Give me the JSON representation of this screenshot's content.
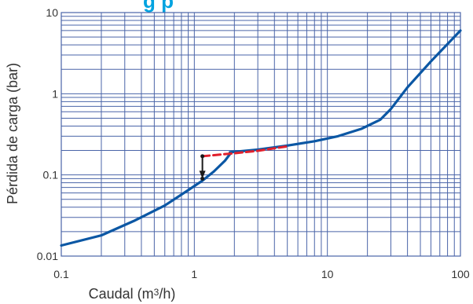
{
  "chart_data": {
    "type": "line",
    "title_fragment": "g p",
    "xlabel": "Caudal (m3/h)",
    "xlabel_main": "Caudal (m",
    "xlabel_sup": "3",
    "xlabel_tail": "/h)",
    "ylabel": "Pérdida de carga (bar)",
    "x_scale": "log",
    "y_scale": "log",
    "xlim": [
      0.1,
      100
    ],
    "ylim": [
      0.01,
      10
    ],
    "x_ticks": [
      "0.1",
      "1",
      "10",
      "100"
    ],
    "y_ticks": [
      "0.01",
      "0.1",
      "1",
      "10"
    ],
    "grid": true,
    "colors": {
      "grid": "#4a64a8",
      "main_curve": "#0b57a4",
      "dashed_curve": "#e1202c",
      "arrow": "#1a1a1a",
      "title": "#00a3e0"
    },
    "series": [
      {
        "style": "solid",
        "x": [
          0.1,
          0.2,
          0.35,
          0.6,
          0.9,
          1.15,
          1.4,
          1.7,
          1.85
        ],
        "y": [
          0.0135,
          0.018,
          0.027,
          0.042,
          0.065,
          0.085,
          0.11,
          0.15,
          0.18
        ]
      },
      {
        "style": "solid",
        "x": [
          1.85,
          3,
          5,
          8,
          12,
          18,
          25,
          30,
          40,
          60,
          100
        ],
        "y": [
          0.19,
          0.205,
          0.23,
          0.26,
          0.3,
          0.37,
          0.48,
          0.65,
          1.2,
          2.5,
          6.0
        ]
      },
      {
        "style": "dashed",
        "x": [
          1.15,
          2,
          3,
          5
        ],
        "y": [
          0.17,
          0.185,
          0.198,
          0.225
        ]
      }
    ],
    "arrow": {
      "x": 1.15,
      "y_from": 0.17,
      "y_to": 0.09
    }
  }
}
